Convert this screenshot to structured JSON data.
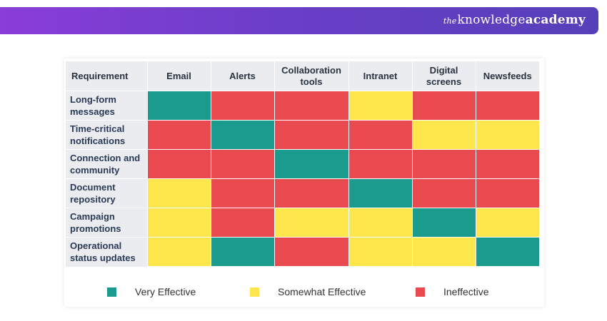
{
  "brand": {
    "the": "the",
    "part1": "knowledge",
    "part2": "academy"
  },
  "colors": {
    "Very Effective": "#1b9a8e",
    "Somewhat Effective": "#fde74c",
    "Ineffective": "#e94a4f",
    "banner_start": "#8a3dd8",
    "banner_end": "#5640b9"
  },
  "chart_data": {
    "type": "heatmap",
    "title": "",
    "row_header": "Requirement",
    "columns": [
      "Email",
      "Alerts",
      "Collaboration tools",
      "Intranet",
      "Digital screens",
      "Newsfeeds"
    ],
    "rows": [
      {
        "label": "Long-form messages",
        "values": [
          "Very Effective",
          "Ineffective",
          "Ineffective",
          "Somewhat Effective",
          "Ineffective",
          "Ineffective"
        ]
      },
      {
        "label": "Time-critical notifications",
        "values": [
          "Ineffective",
          "Very Effective",
          "Ineffective",
          "Ineffective",
          "Somewhat Effective",
          "Somewhat Effective"
        ]
      },
      {
        "label": "Connection and community",
        "values": [
          "Ineffective",
          "Ineffective",
          "Very Effective",
          "Ineffective",
          "Ineffective",
          "Ineffective"
        ]
      },
      {
        "label": "Document repository",
        "values": [
          "Somewhat Effective",
          "Ineffective",
          "Ineffective",
          "Very Effective",
          "Ineffective",
          "Ineffective"
        ]
      },
      {
        "label": "Campaign promotions",
        "values": [
          "Somewhat Effective",
          "Ineffective",
          "Somewhat Effective",
          "Somewhat Effective",
          "Very Effective",
          "Somewhat Effective"
        ]
      },
      {
        "label": "Operational status updates",
        "values": [
          "Somewhat Effective",
          "Very Effective",
          "Ineffective",
          "Somewhat Effective",
          "Somewhat Effective",
          "Very Effective"
        ]
      }
    ],
    "legend": [
      "Very Effective",
      "Somewhat Effective",
      "Ineffective"
    ],
    "legend_position": "bottom"
  }
}
